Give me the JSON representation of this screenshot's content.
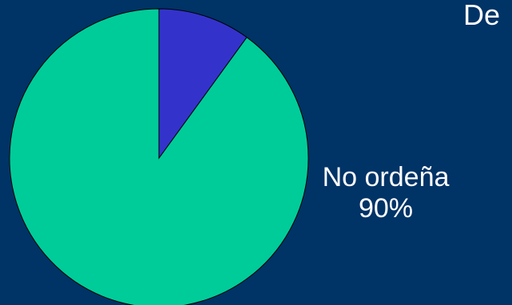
{
  "slide": {
    "title": "De",
    "background_color": "#003366"
  },
  "chart_data": {
    "type": "pie",
    "slices": [
      {
        "label": "No ordeña",
        "value": 90,
        "value_label": "90%",
        "color": "#00cc99"
      },
      {
        "label": "",
        "value": 10,
        "value_label": "",
        "color": "#3333cc"
      }
    ],
    "start_angle_deg": -90,
    "direction": "counterclockwise",
    "slice_outline_color": "#000000"
  }
}
